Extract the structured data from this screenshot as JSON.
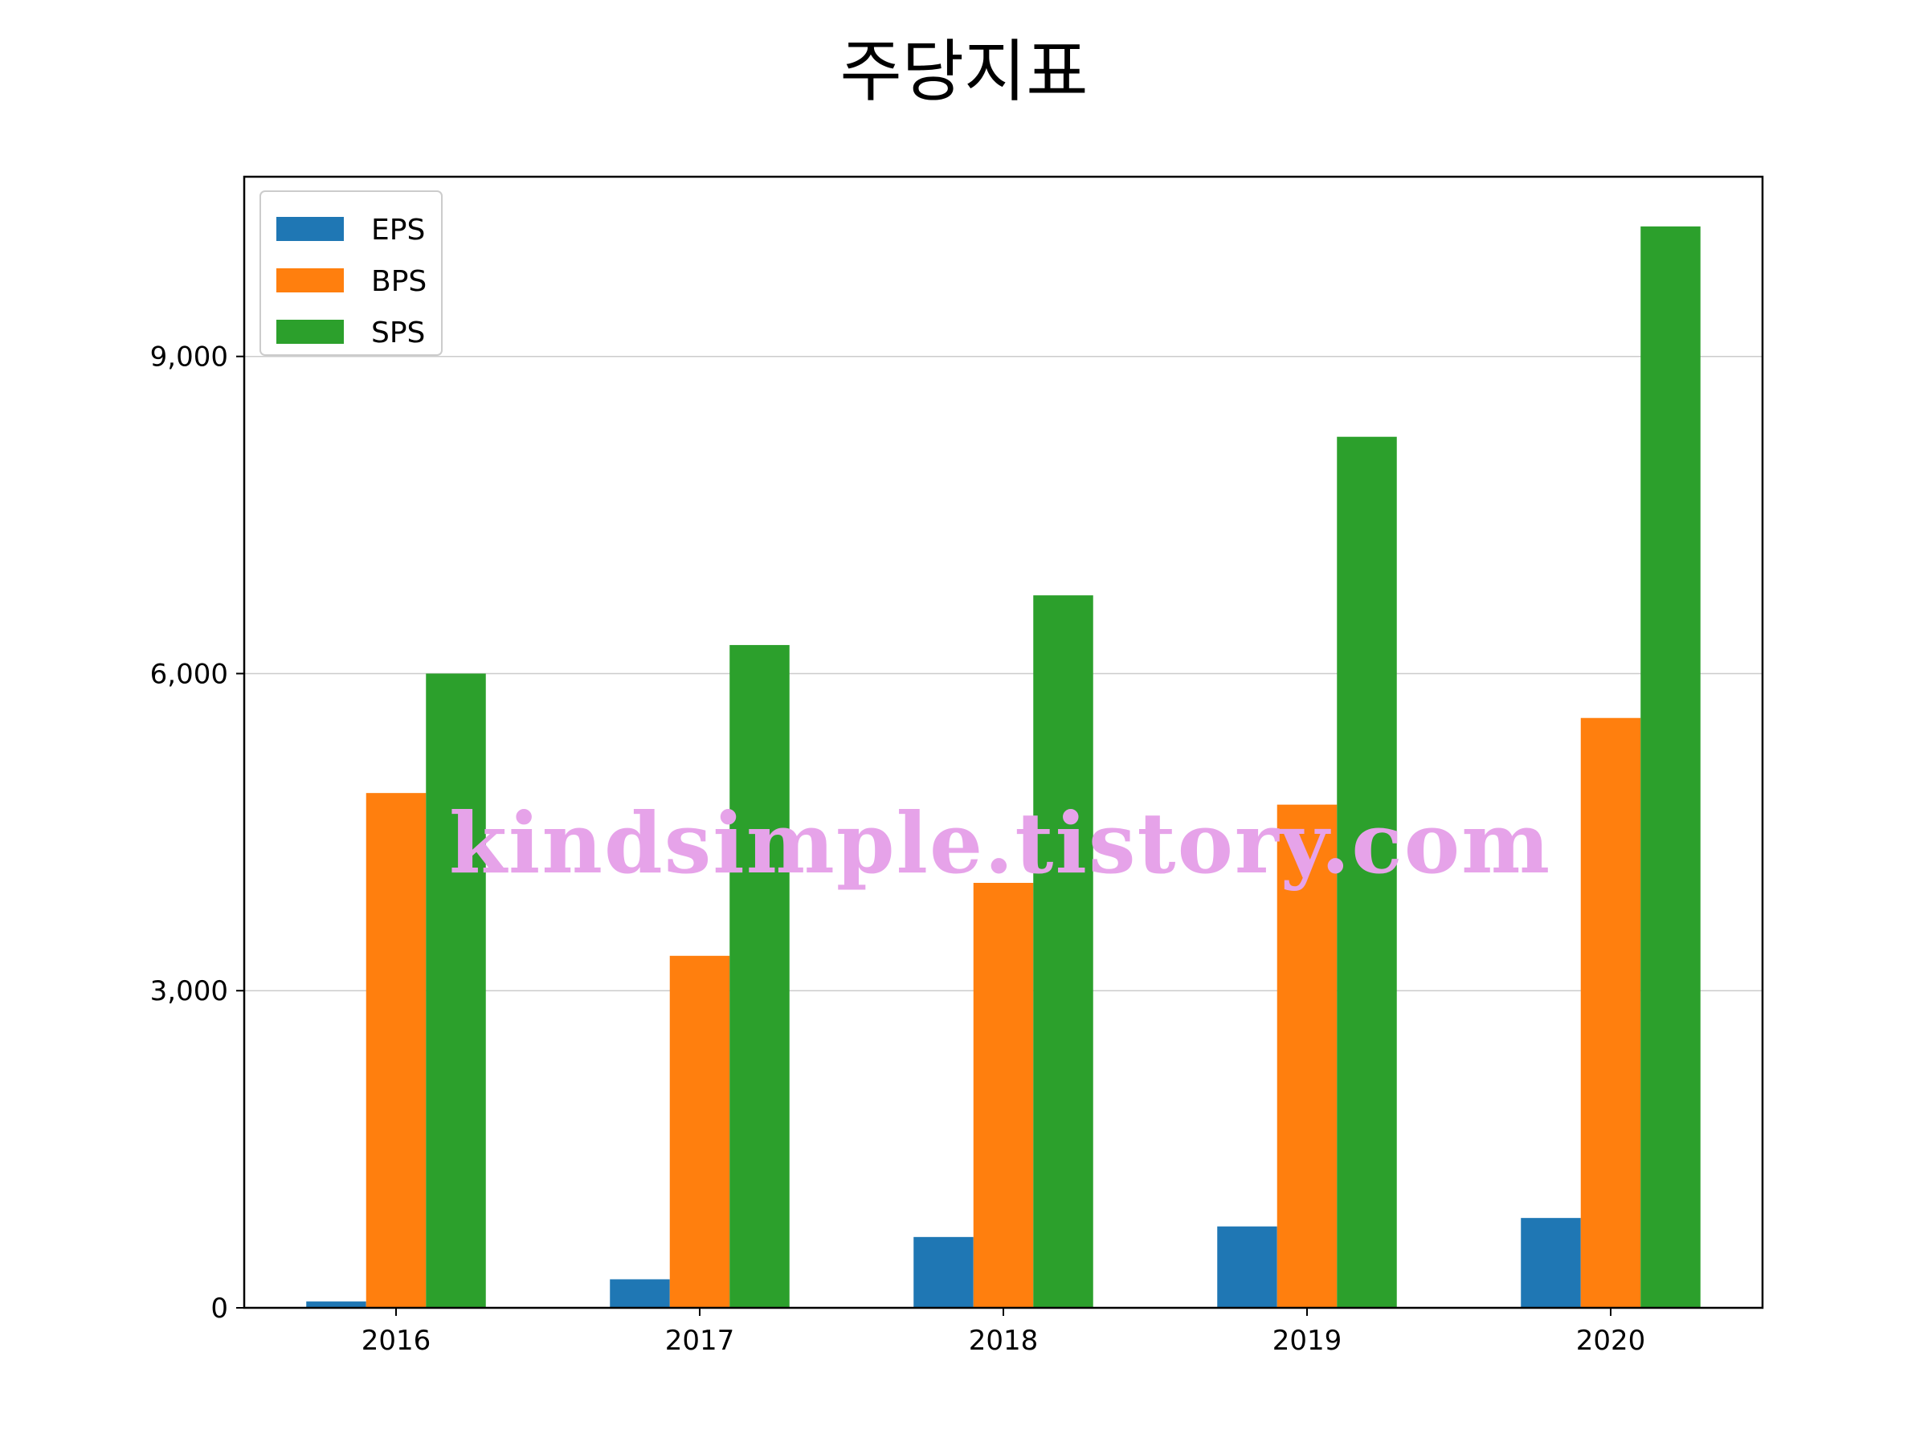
{
  "title": "주당지표",
  "watermark": "kindsimple.tistory.com",
  "chart_data": {
    "type": "bar",
    "categories": [
      "2016",
      "2017",
      "2018",
      "2019",
      "2020"
    ],
    "series": [
      {
        "name": "EPS",
        "color": "#1f77b4",
        "values": [
          60,
          270,
          670,
          770,
          850
        ]
      },
      {
        "name": "BPS",
        "color": "#ff7f0e",
        "values": [
          4870,
          3330,
          4020,
          4760,
          5580
        ]
      },
      {
        "name": "SPS",
        "color": "#2ca02c",
        "values": [
          6000,
          6270,
          6740,
          8240,
          10230
        ]
      }
    ],
    "ylim": [
      0,
      10700
    ],
    "yticks": [
      0,
      3000,
      6000,
      9000
    ],
    "ytick_labels": [
      "0",
      "3,000",
      "6,000",
      "9,000"
    ],
    "grid": "horizontal",
    "legend_position": "top-left"
  }
}
